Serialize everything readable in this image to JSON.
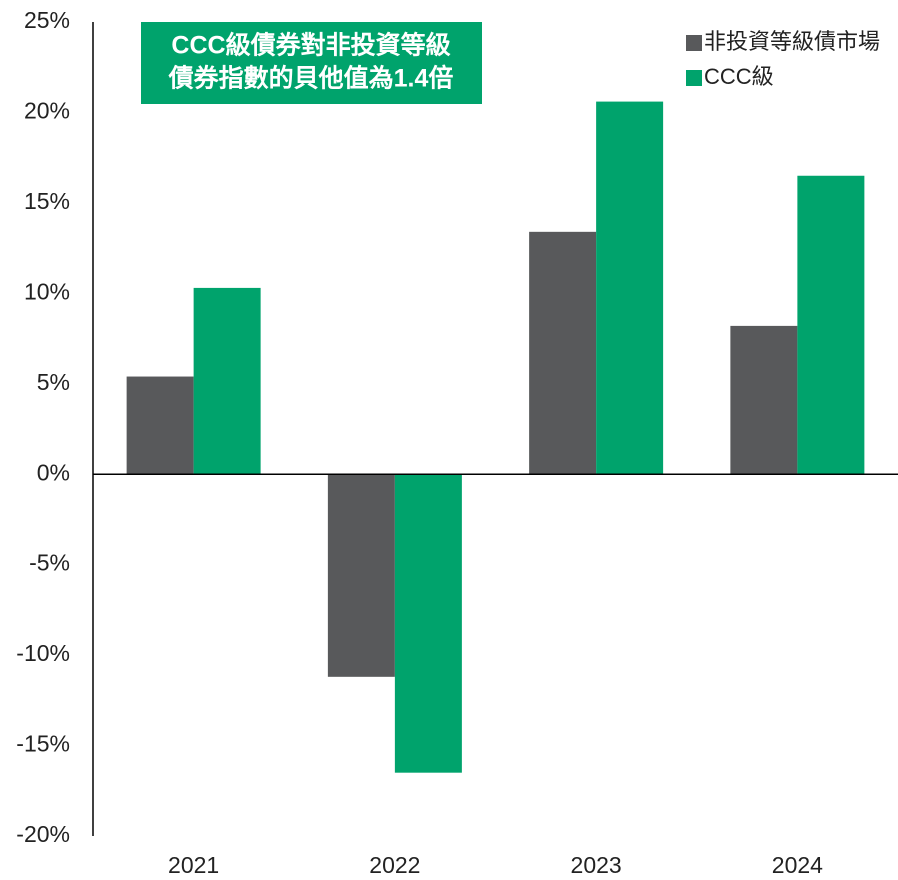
{
  "chart_data": {
    "type": "bar",
    "categories": [
      "2021",
      "2022",
      "2023",
      "2024"
    ],
    "series": [
      {
        "name": "非投資等級債市場",
        "color": "#58595b",
        "values": [
          5.4,
          -11.2,
          13.4,
          8.2
        ]
      },
      {
        "name": "CCC級",
        "color": "#00a36c",
        "values": [
          10.3,
          -16.5,
          20.6,
          16.5
        ]
      }
    ],
    "ylim": [
      -20,
      25
    ],
    "yticks": [
      {
        "value": -20,
        "label": "-20%"
      },
      {
        "value": -15,
        "label": "-15%"
      },
      {
        "value": -10,
        "label": "-10%"
      },
      {
        "value": -5,
        "label": "-5%"
      },
      {
        "value": 0,
        "label": "0%"
      },
      {
        "value": 5,
        "label": "5%"
      },
      {
        "value": 10,
        "label": "10%"
      },
      {
        "value": 15,
        "label": "15%"
      },
      {
        "value": 20,
        "label": "20%"
      },
      {
        "value": 25,
        "label": "25%"
      }
    ],
    "annotation": {
      "lines": [
        "CCC級債券對非投資等級",
        "債券指數的貝他值為1.4倍"
      ],
      "color": "#00a36c"
    },
    "legend": "top-right",
    "grid": false
  }
}
